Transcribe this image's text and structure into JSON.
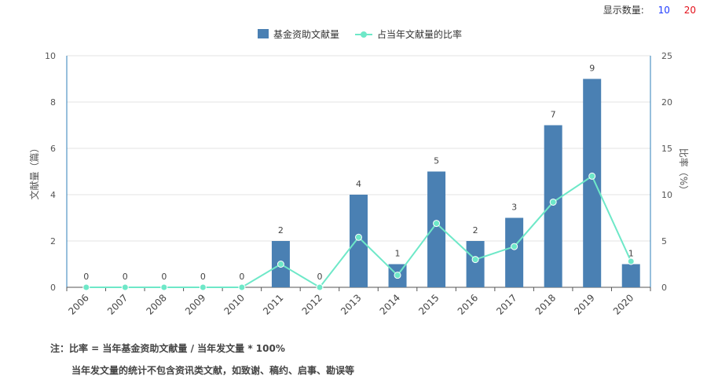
{
  "display_count": {
    "label": "显示数量:",
    "options": [
      "10",
      "20"
    ]
  },
  "chart_data": {
    "type": "bar",
    "categories": [
      "2006",
      "2007",
      "2008",
      "2009",
      "2010",
      "2011",
      "2012",
      "2013",
      "2014",
      "2015",
      "2016",
      "2017",
      "2018",
      "2019",
      "2020"
    ],
    "series": [
      {
        "name": "基金资助文献量",
        "type": "bar",
        "axis": "left",
        "color": "#4a80b3",
        "values": [
          0,
          0,
          0,
          0,
          0,
          2,
          0,
          4,
          1,
          5,
          2,
          3,
          7,
          9,
          1
        ]
      },
      {
        "name": "占当年文献量的比率",
        "type": "line",
        "axis": "right",
        "color": "#6ee8c8",
        "values": [
          0,
          0,
          0,
          0,
          0,
          2.5,
          0,
          5.4,
          1.3,
          6.9,
          3,
          4.4,
          9.2,
          12,
          2.8
        ]
      }
    ],
    "ylabel": "文献量（篇）",
    "ylim": [
      0,
      10
    ],
    "yticks": [
      0,
      2,
      4,
      6,
      8,
      10
    ],
    "y2label": "比率（%）",
    "y2lim": [
      0,
      25
    ],
    "y2ticks": [
      0,
      5,
      10,
      15,
      20,
      25
    ],
    "grid": true,
    "legend": "top-center"
  },
  "notes": {
    "line1": "注：比率 = 当年基金资助文献量 / 当年发文量 * 100%",
    "line2": "当年发文量的统计不包含资讯类文献，如致谢、稿约、启事、勘误等"
  }
}
